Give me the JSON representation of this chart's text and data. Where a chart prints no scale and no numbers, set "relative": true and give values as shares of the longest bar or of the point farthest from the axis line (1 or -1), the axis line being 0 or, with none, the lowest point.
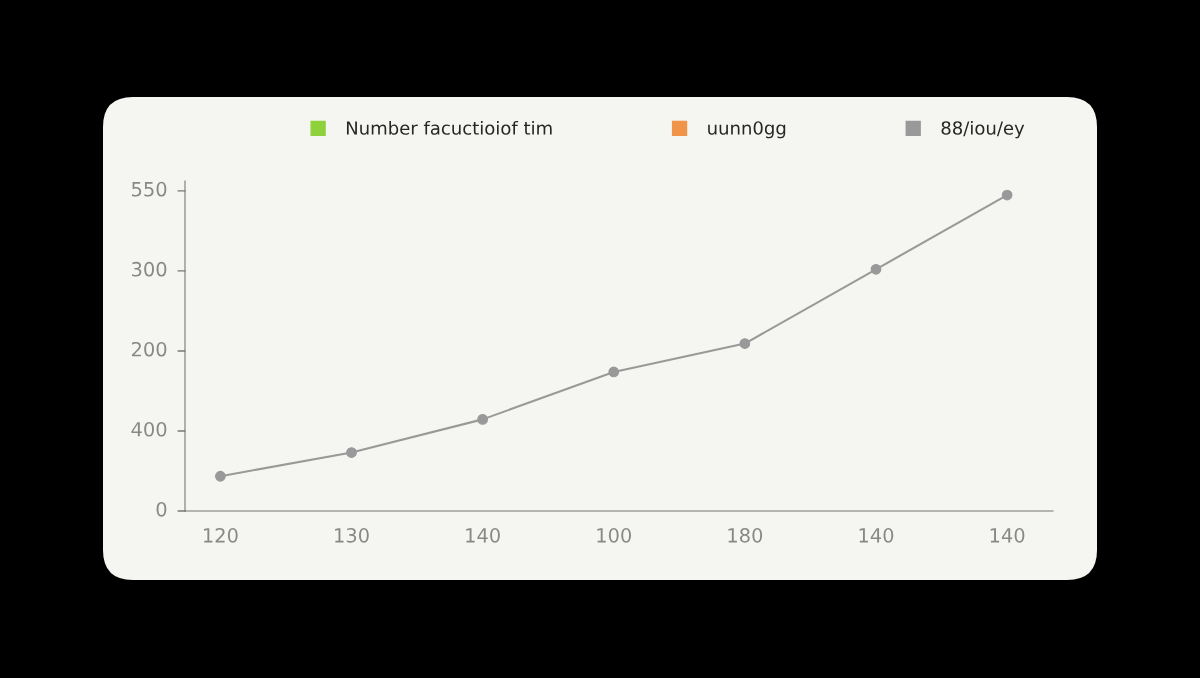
{
  "chart_data": {
    "type": "line",
    "categories": [
      "120",
      "130",
      "140",
      "100",
      "180",
      "140",
      "140"
    ],
    "series": [
      {
        "name": "Number facuctioiof tim",
        "color": "#8fd13a",
        "values": [
          null,
          null,
          null,
          null,
          null,
          null,
          null
        ]
      },
      {
        "name": "uunn0gg",
        "color": "#f0944a",
        "values": [
          null,
          null,
          null,
          null,
          null,
          null,
          null
        ]
      },
      {
        "name": "88/iou/ey",
        "color": "#999999",
        "values": [
          0.11,
          0.185,
          0.29,
          0.44,
          0.53,
          0.765,
          1
        ]
      }
    ],
    "relative": true,
    "annotations": [
      "550",
      "300",
      "200",
      "400",
      "0"
    ],
    "legend": "top",
    "marker": "circle",
    "line_style": "solid"
  }
}
